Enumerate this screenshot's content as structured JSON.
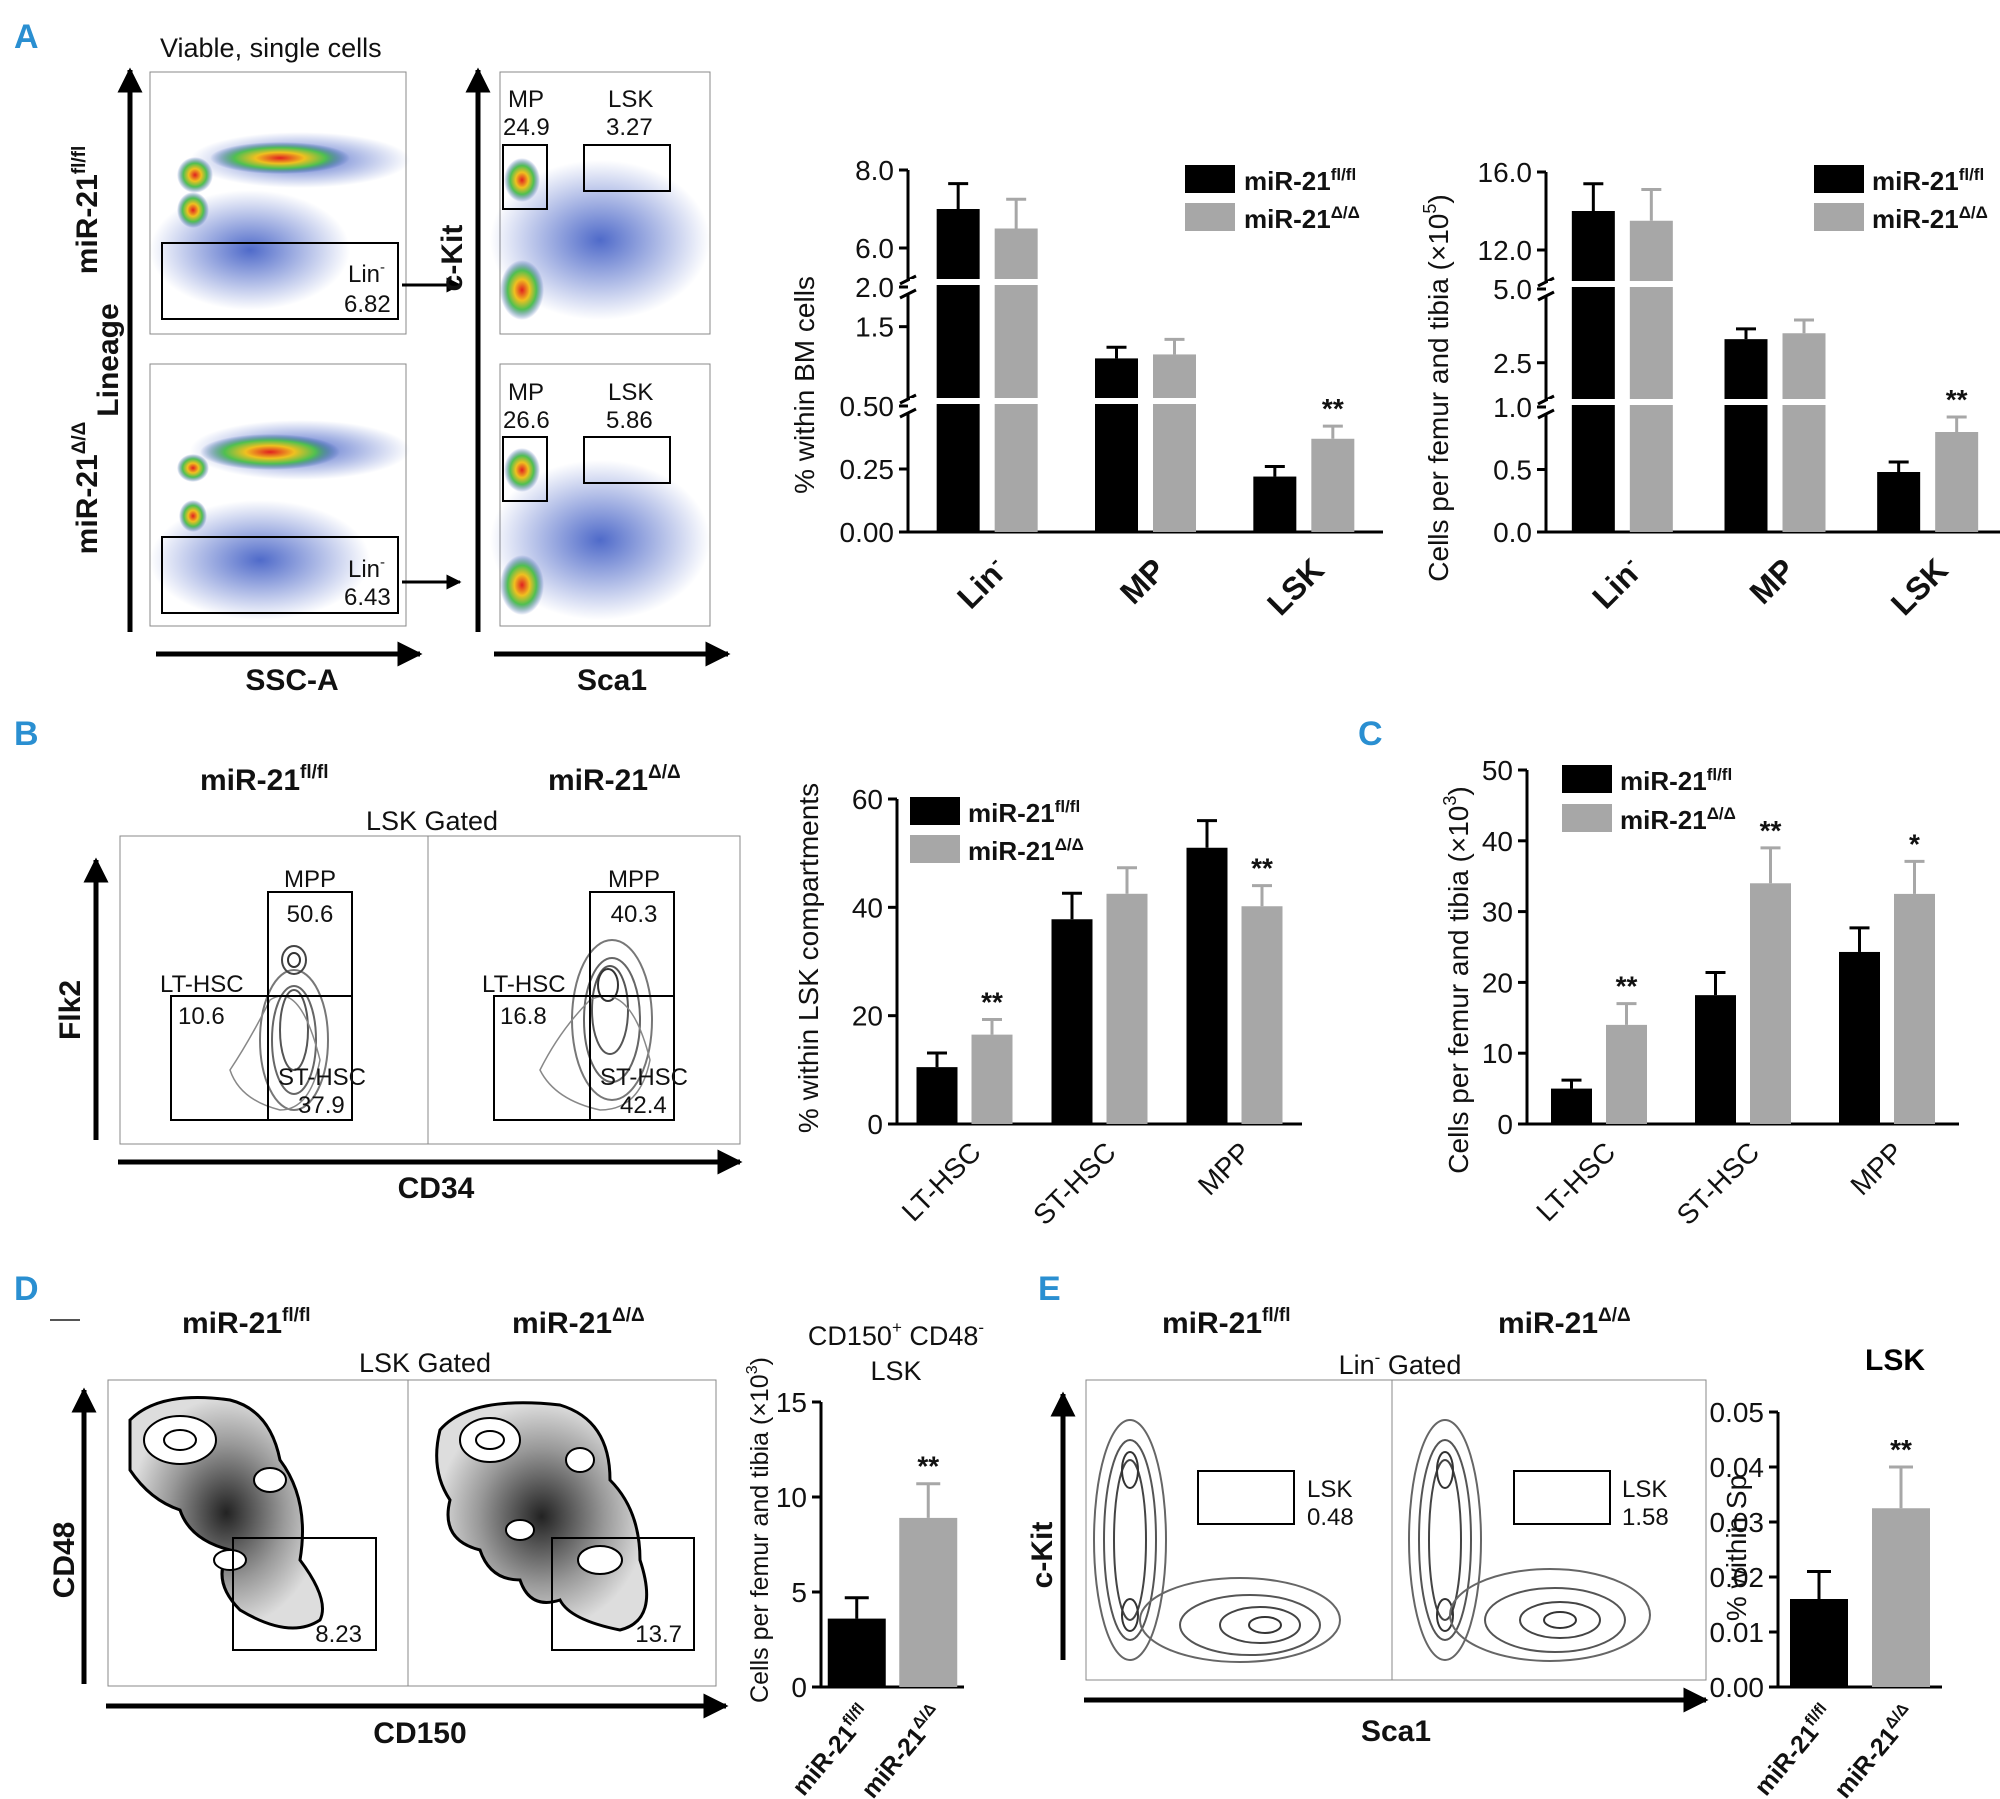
{
  "colors": {
    "ctrl": "#000000",
    "ko": "#a7a7a7",
    "panel_letter": "#2a8fd1"
  },
  "genotypes": {
    "fl": "miR-21",
    "fl_sup": "fl/fl",
    "ko": "miR-21",
    "ko_sup": "Δ/Δ"
  },
  "panel_A": {
    "letter": "A",
    "viable_label": "Viable, single cells",
    "lineage_axis": "Lineage",
    "ssc_axis": "SSC-A",
    "ckit_axis": "c-Kit",
    "sca1_axis": "Sca1",
    "top": {
      "lin_label": "Lin",
      "lin_sup": "-",
      "lin_value": "6.82",
      "mp_label": "MP",
      "mp_value": "24.9",
      "lsk_label": "LSK",
      "lsk_value": "3.27"
    },
    "bottom": {
      "lin_label": "Lin",
      "lin_sup": "-",
      "lin_value": "6.43",
      "mp_label": "MP",
      "mp_value": "26.6",
      "lsk_label": "LSK",
      "lsk_value": "5.86"
    }
  },
  "panel_B": {
    "letter": "B",
    "gate_label": "LSK Gated",
    "flk2_axis": "Flk2",
    "cd34_axis": "CD34",
    "left": {
      "mpp": "MPP",
      "mpp_value": "50.6",
      "lt": "LT-HSC",
      "lt_value": "10.6",
      "st": "ST-HSC",
      "st_value": "37.9"
    },
    "right": {
      "mpp": "MPP",
      "mpp_value": "40.3",
      "lt": "LT-HSC",
      "lt_value": "16.8",
      "st": "ST-HSC",
      "st_value": "42.4"
    }
  },
  "panel_C": {
    "letter": "C"
  },
  "panel_D": {
    "letter": "D",
    "gate_label": "LSK Gated",
    "cd48_axis": "CD48",
    "cd150_axis": "CD150",
    "left_value": "8.23",
    "right_value": "13.7"
  },
  "panel_E": {
    "letter": "E",
    "gate_label": "Lin",
    "gate_sup": "-",
    "gate_suffix": " Gated",
    "ckit_axis": "c-Kit",
    "sca1_axis": "Sca1",
    "left": {
      "lsk": "LSK",
      "value": "0.48"
    },
    "right": {
      "lsk": "LSK",
      "value": "1.58"
    }
  },
  "chart_data": [
    {
      "id": "A1",
      "type": "bar",
      "ylabel": "% within BM cells",
      "categories": [
        "Lin",
        "MP",
        "LSK"
      ],
      "category_sups": [
        "-",
        "",
        ""
      ],
      "series": [
        {
          "name": "miR-21fl/fl",
          "values": [
            7.0,
            1.1,
            0.22
          ],
          "errors": [
            0.65,
            0.14,
            0.04
          ]
        },
        {
          "name": "miR-21Δ/Δ",
          "values": [
            6.5,
            1.15,
            0.37
          ],
          "errors": [
            0.75,
            0.19,
            0.05
          ]
        }
      ],
      "segments": [
        {
          "min": 0,
          "max": 0.5,
          "ticks": [
            "0.00",
            "0.25",
            "0.50"
          ]
        },
        {
          "min": 0.5,
          "max": 2.0,
          "ticks": [
            "1.5",
            "2.0"
          ]
        },
        {
          "min": 5.0,
          "max": 8.0,
          "ticks": [
            "6.0",
            "8.0"
          ]
        }
      ],
      "annotations": [
        {
          "category": 2,
          "series": 1,
          "text": "**"
        }
      ]
    },
    {
      "id": "A2",
      "type": "bar",
      "ylabel": "Cells per femur and tibia (×10",
      "ylabel_sup": "5",
      "ylabel_end": ")",
      "categories": [
        "Lin",
        "MP",
        "LSK"
      ],
      "category_sups": [
        "-",
        "",
        ""
      ],
      "series": [
        {
          "name": "miR-21fl/fl",
          "values": [
            14.0,
            3.3,
            0.48
          ],
          "errors": [
            1.4,
            0.35,
            0.08
          ]
        },
        {
          "name": "miR-21Δ/Δ",
          "values": [
            13.5,
            3.5,
            0.8
          ],
          "errors": [
            1.6,
            0.45,
            0.12
          ]
        }
      ],
      "segments": [
        {
          "min": 0,
          "max": 1.0,
          "ticks": [
            "0.0",
            "0.5",
            "1.0"
          ]
        },
        {
          "min": 1.0,
          "max": 5.0,
          "ticks": [
            "2.5",
            "5.0"
          ]
        },
        {
          "min": 10.0,
          "max": 16.0,
          "ticks": [
            "12.0",
            "16.0"
          ]
        }
      ],
      "annotations": [
        {
          "category": 2,
          "series": 1,
          "text": "**"
        }
      ]
    },
    {
      "id": "B",
      "type": "bar",
      "ylabel": "% within LSK compartments",
      "categories": [
        "LT-HSC",
        "ST-HSC",
        "MPP"
      ],
      "series": [
        {
          "name": "miR-21fl/fl",
          "values": [
            10.5,
            37.8,
            51.0
          ],
          "errors": [
            2.6,
            4.8,
            5.0
          ]
        },
        {
          "name": "miR-21Δ/Δ",
          "values": [
            16.5,
            42.5,
            40.2
          ],
          "errors": [
            2.8,
            4.8,
            3.8
          ]
        }
      ],
      "ylim": [
        0,
        60
      ],
      "yticks": [
        "0",
        "20",
        "40",
        "60"
      ],
      "annotations": [
        {
          "category": 0,
          "series": 1,
          "text": "**"
        },
        {
          "category": 2,
          "series": 1,
          "text": "**"
        }
      ]
    },
    {
      "id": "C",
      "type": "bar",
      "ylabel": "Cells per femur and tibia (×10",
      "ylabel_sup": "3",
      "ylabel_end": ")",
      "categories": [
        "LT-HSC",
        "ST-HSC",
        "MPP"
      ],
      "series": [
        {
          "name": "miR-21fl/fl",
          "values": [
            5.0,
            18.2,
            24.3
          ],
          "errors": [
            1.2,
            3.2,
            3.4
          ]
        },
        {
          "name": "miR-21Δ/Δ",
          "values": [
            14.0,
            34.0,
            32.5
          ],
          "errors": [
            3.0,
            5.0,
            4.6
          ]
        }
      ],
      "ylim": [
        0,
        50
      ],
      "yticks": [
        "0",
        "10",
        "20",
        "30",
        "40",
        "50"
      ],
      "annotations": [
        {
          "category": 0,
          "series": 1,
          "text": "**"
        },
        {
          "category": 1,
          "series": 1,
          "text": "**"
        },
        {
          "category": 2,
          "series": 1,
          "text": "*"
        }
      ]
    },
    {
      "id": "D",
      "type": "bar",
      "title": "CD150",
      "title_sup1": "+",
      "title_mid": " CD48",
      "title_sup2": "-",
      "title_line2": "LSK",
      "ylabel": "Cells per femur and tibia (×10",
      "ylabel_sup": "3",
      "ylabel_end": ")",
      "categories": [
        "miR-21fl/fl",
        "miR-21Δ/Δ"
      ],
      "values": [
        3.6,
        8.9
      ],
      "errors": [
        1.1,
        1.8
      ],
      "ylim": [
        0,
        15
      ],
      "yticks": [
        "0",
        "5",
        "10",
        "15"
      ],
      "annotations": [
        {
          "index": 1,
          "text": "**"
        }
      ]
    },
    {
      "id": "E",
      "type": "bar",
      "title": "LSK",
      "ylabel": "% within Sp",
      "categories": [
        "miR-21fl/fl",
        "miR-21Δ/Δ"
      ],
      "values": [
        0.016,
        0.0325
      ],
      "errors": [
        0.005,
        0.0075
      ],
      "ylim": [
        0,
        0.05
      ],
      "yticks": [
        "0.00",
        "0.01",
        "0.02",
        "0.03",
        "0.04",
        "0.05"
      ],
      "annotations": [
        {
          "index": 1,
          "text": "**"
        }
      ]
    }
  ]
}
